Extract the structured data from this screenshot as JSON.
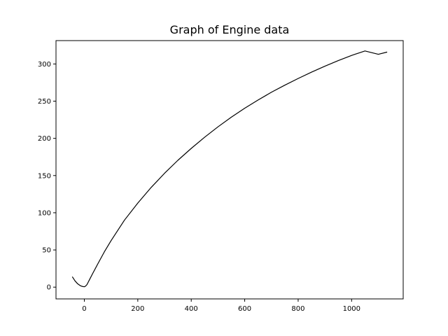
{
  "chart_data": {
    "type": "line",
    "title": "Graph of Engine data",
    "xlabel": "",
    "ylabel": "",
    "xlim": [
      -106,
      1193
    ],
    "ylim": [
      -15.8,
      331.4
    ],
    "xticks": [
      0,
      200,
      400,
      600,
      800,
      1000
    ],
    "yticks": [
      0,
      50,
      100,
      150,
      200,
      250,
      300
    ],
    "grid": false,
    "legend": "none",
    "series": [
      {
        "color": "#000000",
        "x": [
          -45,
          -35,
          -25,
          -15,
          -8,
          0,
          5,
          10,
          15,
          20,
          30,
          50,
          75,
          100,
          150,
          200,
          250,
          300,
          350,
          400,
          450,
          500,
          550,
          600,
          650,
          700,
          750,
          800,
          850,
          900,
          950,
          1000,
          1050,
          1100,
          1133
        ],
        "y": [
          14,
          8.5,
          4.5,
          2,
          1,
          0.5,
          1.5,
          3.5,
          7,
          10.5,
          17.5,
          31,
          47.5,
          62.5,
          90,
          113,
          134,
          153,
          170.5,
          186.5,
          201.5,
          215.5,
          228.5,
          240.5,
          251.5,
          262,
          271.5,
          280.5,
          289,
          297,
          304.5,
          311.5,
          317.5,
          313,
          316
        ]
      }
    ]
  }
}
